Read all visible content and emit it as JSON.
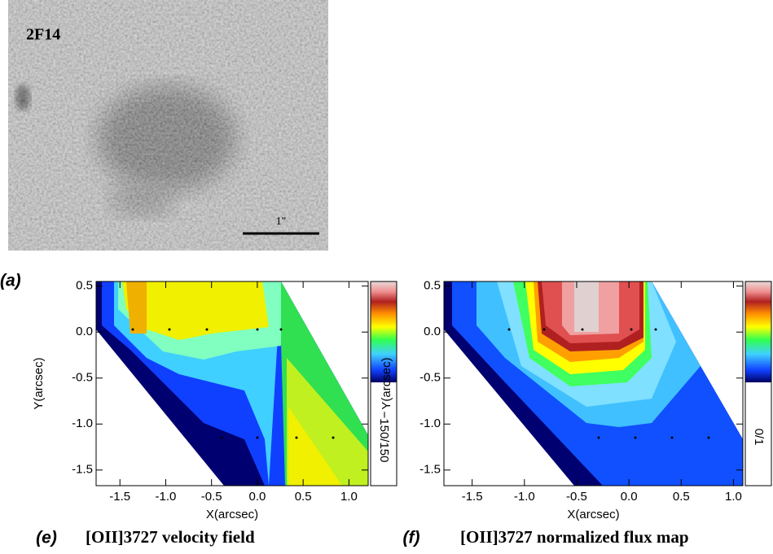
{
  "image": {
    "label": "2F14",
    "scale_label": "1\""
  },
  "panel_label": "(a)",
  "chart_data": [
    {
      "type": "contour",
      "panel_label": "(e)",
      "title": "[OII]3727 velocity field",
      "x_label": "X(arcsec)",
      "y_label": "Y(arcsec)",
      "colorbar_label": "−150/150",
      "xlim": [
        -1.76,
        1.21
      ],
      "ylim": [
        -1.67,
        0.55
      ],
      "xticks": [
        -1.5,
        {
          "value": -1,
          "label": "-1.0"
        },
        -0.5,
        {
          "value": 0,
          "label": "0.0"
        },
        0.5,
        {
          "value": 1,
          "label": "1.0"
        }
      ],
      "yticks": [
        0.5,
        {
          "value": 0,
          "label": "0.0"
        },
        -0.5,
        {
          "value": -1,
          "label": "-1.0"
        },
        -1.5
      ]
    },
    {
      "type": "contour",
      "panel_label": "(f)",
      "title": "[OII]3727 normalized flux map",
      "x_label": "X(arcsec)",
      "y_label": "Y(arcsec)",
      "colorbar_label": "0/1",
      "xlim": [
        -1.77,
        1.09
      ],
      "ylim": [
        -1.67,
        0.55
      ],
      "xticks": [
        -1.5,
        {
          "value": -1,
          "label": "-1.0"
        },
        -0.5,
        {
          "value": 0,
          "label": "0.0"
        },
        0.5,
        {
          "value": 1,
          "label": "1.0"
        }
      ],
      "yticks": [
        0.5,
        {
          "value": 0,
          "label": "0.0"
        },
        -0.5,
        {
          "value": -1,
          "label": "-1.0"
        },
        -1.5
      ]
    }
  ]
}
